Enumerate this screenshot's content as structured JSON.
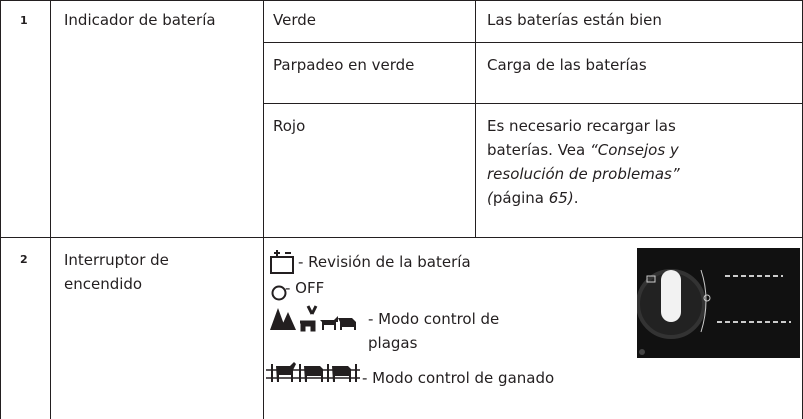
{
  "table": {
    "rows": [
      {
        "number": "1",
        "label": "Indicador de batería",
        "details": [
          {
            "state": "Verde",
            "description": [
              {
                "text": "Las baterías están bien"
              }
            ]
          },
          {
            "state": "Parpadeo en verde",
            "description": [
              {
                "text": "Carga de las baterías"
              }
            ]
          },
          {
            "state": "Rojo",
            "description": [
              {
                "text": "Es necesario recargar las baterías. Vea "
              },
              {
                "text": "“Consejos y resolución de problemas” (",
                "italic": true
              },
              {
                "text": "página "
              },
              {
                "text": "65)",
                "italic": true
              },
              {
                "text": "."
              }
            ]
          }
        ]
      },
      {
        "number": "2",
        "label": "Interruptor de encendido",
        "items": [
          "- Revisión de la batería",
          "- OFF",
          "- Modo control de plagas",
          "- Modo control de ganado"
        ]
      }
    ]
  }
}
